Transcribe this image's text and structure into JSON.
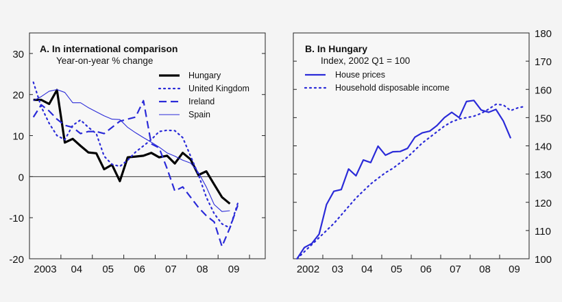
{
  "colors": {
    "blue": "#2a2ad8",
    "black": "#000000",
    "frame": "#222222"
  },
  "chart_data": [
    {
      "type": "line",
      "title": "A. In international comparison",
      "subtitle": "Year-on-year % change",
      "xlabel": "",
      "ylabel": "",
      "x_tick_labels": [
        "2003",
        "04",
        "05",
        "06",
        "07",
        "08",
        "09"
      ],
      "xlim": [
        2003,
        2010.5
      ],
      "ylim": [
        -20,
        35
      ],
      "y_ticks": [
        -20,
        -10,
        0,
        10,
        20,
        30
      ],
      "y_axis_side": "left",
      "zero_line": true,
      "legend_position": "top-right",
      "x_start": "2003 Q1",
      "frequency": "quarterly",
      "series": [
        {
          "name": "Hungary",
          "style": "solid-thick",
          "color": "#000000",
          "values": [
            18.7,
            18.7,
            17.7,
            21.1,
            8.3,
            9.2,
            7.5,
            5.9,
            5.7,
            1.8,
            2.9,
            -1.1,
            4.7,
            4.9,
            5.1,
            5.8,
            4.7,
            5.1,
            3.2,
            5.8,
            4.2,
            0.4,
            1.3,
            -1.9,
            -5.0,
            -6.6
          ]
        },
        {
          "name": "United Kingdom",
          "style": "dotted",
          "color": "#2a2ad8",
          "values": [
            23,
            17,
            13,
            10,
            9,
            12.5,
            13.8,
            12,
            10.5,
            5,
            3,
            2.5,
            4,
            6,
            7.5,
            9,
            11,
            11.3,
            11.2,
            9.5,
            5,
            0.5,
            -5,
            -9,
            -11.5,
            -12.5,
            -6.5
          ]
        },
        {
          "name": "Ireland",
          "style": "dashed",
          "color": "#2a2ad8",
          "values": [
            14.5,
            17.5,
            16,
            14,
            12.5,
            12,
            10.5,
            11,
            11,
            10.5,
            12,
            13.5,
            14,
            14.5,
            18.5,
            8,
            7,
            2,
            -3.5,
            -2.5,
            -5,
            -7.5,
            -9.5,
            -11,
            -17,
            -12.5,
            -7
          ]
        },
        {
          "name": "Spain",
          "style": "solid-thin",
          "color": "#2a2ad8",
          "values": [
            18.5,
            19.5,
            20.8,
            21.2,
            20.5,
            18,
            18,
            16.8,
            15.8,
            14.8,
            14,
            13.9,
            12,
            10.7,
            9.5,
            8.4,
            7.2,
            5.8,
            5,
            4,
            3.3,
            1,
            -2.5,
            -6.8,
            -8.5,
            -8.3
          ]
        }
      ]
    },
    {
      "type": "line",
      "title": "B. In Hungary",
      "subtitle": "Index, 2002 Q1 = 100",
      "xlabel": "",
      "ylabel": "",
      "x_tick_labels": [
        "2002",
        "03",
        "04",
        "05",
        "06",
        "07",
        "08",
        "09"
      ],
      "xlim": [
        2002,
        2010
      ],
      "ylim": [
        100,
        180
      ],
      "y_ticks": [
        100,
        110,
        120,
        130,
        140,
        150,
        160,
        170,
        180
      ],
      "y_axis_side": "right",
      "legend_position": "top-left",
      "x_start": "2002 Q1",
      "frequency": "quarterly",
      "series": [
        {
          "name": "House prices",
          "style": "solid",
          "color": "#2a2ad8",
          "values": [
            100,
            104,
            105.4,
            108.7,
            119.2,
            123.9,
            124.5,
            131.8,
            129.4,
            135,
            134.1,
            139.9,
            136.7,
            137.9,
            138,
            139.1,
            143.1,
            144.6,
            145.2,
            147.2,
            150,
            151.9,
            150,
            155.7,
            156.1,
            152.7,
            151.9,
            152.9,
            148.8,
            142.7
          ]
        },
        {
          "name": "Household disposable income",
          "style": "dotted",
          "color": "#2a2ad8",
          "values": [
            100,
            102.5,
            105,
            107.5,
            110,
            112.5,
            115.5,
            118.5,
            121.5,
            124,
            126.5,
            128.5,
            130.5,
            132,
            134,
            136,
            138.5,
            141,
            143,
            145,
            147,
            148.5,
            149.5,
            150,
            150.5,
            151.5,
            153,
            154.7,
            154.5,
            152.5,
            153.5,
            154
          ]
        }
      ]
    }
  ]
}
